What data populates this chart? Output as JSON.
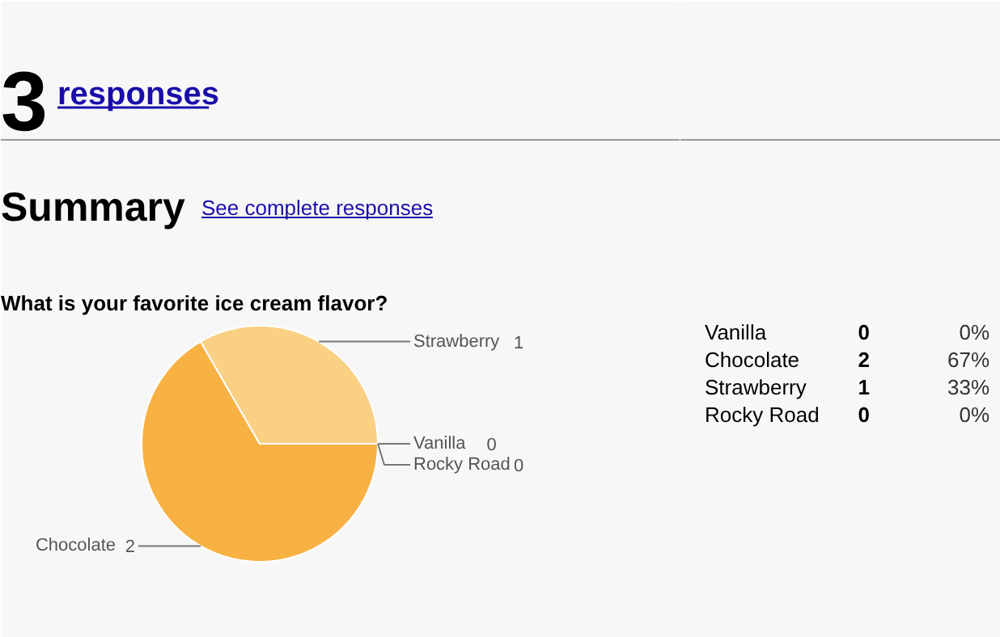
{
  "chart_data": [
    {
      "type": "pie",
      "title": "What is your favorite ice cream flavor?",
      "categories": [
        "Vanilla",
        "Chocolate",
        "Strawberry",
        "Rocky Road"
      ],
      "values": [
        0,
        2,
        1,
        0
      ],
      "colors": [
        "#f5c05a",
        "#f8b143",
        "#f9d084",
        "#f7c46c"
      ],
      "data_labels": true,
      "annotations": [
        "3",
        "responses",
        "Summary",
        "See complete responses"
      ]
    },
    {
      "type": "other",
      "annotations": [
        "Vanilla",
        "0",
        "0%",
        "Chocolate",
        "2",
        "67%",
        "Strawberry",
        "1",
        "33%",
        "Rocky Road",
        "0",
        "0%"
      ]
    }
  ]
}
